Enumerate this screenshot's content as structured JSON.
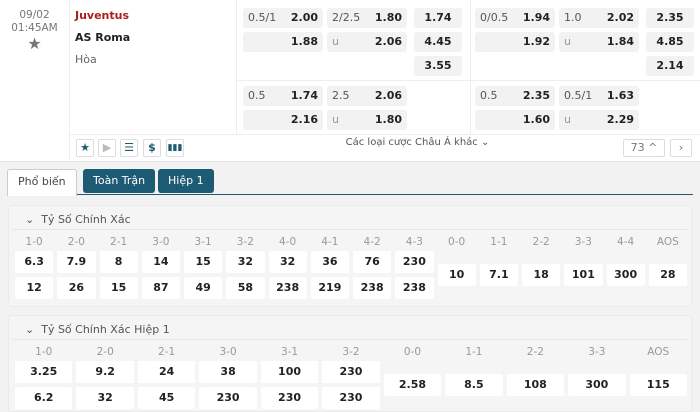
{
  "match": {
    "date": "09/02",
    "time": "01:45AM",
    "home": "Juventus",
    "away": "AS Roma",
    "draw": "Hòa"
  },
  "ft": {
    "hdp": {
      "line": "0.5/1",
      "home": "2.00",
      "away": "1.88"
    },
    "ou": {
      "line": "2/2.5",
      "over": "1.80",
      "u": "u",
      "under": "2.06"
    },
    "x12": [
      "1.74",
      "4.45",
      "3.55"
    ]
  },
  "ft2": {
    "hdp": {
      "line": "0.5",
      "home": "1.74",
      "away": "2.16"
    },
    "ou": {
      "line": "2.5",
      "over": "2.06",
      "u": "u",
      "under": "1.80"
    }
  },
  "h1": {
    "hdp": {
      "line": "0/0.5",
      "home": "1.94",
      "away": "1.92"
    },
    "ou": {
      "line": "1.0",
      "over": "2.02",
      "u": "u",
      "under": "1.84"
    },
    "x12": [
      "2.35",
      "4.85",
      "2.14"
    ]
  },
  "h12": {
    "hdp": {
      "line": "0.5",
      "home": "2.35",
      "away": "1.60"
    },
    "ou": {
      "line": "0.5/1",
      "over": "1.63",
      "u": "u",
      "under": "2.29"
    }
  },
  "footer": {
    "more_label": "Các loại cược Châu Á khác",
    "count": "73"
  },
  "tabs": [
    "Phổ biến",
    "Toàn Trận",
    "Hiệp 1"
  ],
  "accent": "#1d5a73",
  "cs": {
    "title": "Tỷ Số Chính Xác",
    "labels": [
      "1-0",
      "2-0",
      "2-1",
      "3-0",
      "3-1",
      "3-2",
      "4-0",
      "4-1",
      "4-2",
      "4-3",
      "0-0",
      "1-1",
      "2-2",
      "3-3",
      "4-4",
      "AOS"
    ],
    "home": [
      "6.3",
      "7.9",
      "8",
      "14",
      "15",
      "32",
      "32",
      "36",
      "76",
      "230"
    ],
    "away": [
      "12",
      "26",
      "15",
      "87",
      "49",
      "58",
      "238",
      "219",
      "238",
      "238"
    ],
    "draw": [
      "10",
      "7.1",
      "18",
      "101",
      "300",
      "28"
    ]
  },
  "cs1": {
    "title": "Tỷ Số Chính Xác Hiệp 1",
    "labels": [
      "1-0",
      "2-0",
      "2-1",
      "3-0",
      "3-1",
      "3-2",
      "0-0",
      "1-1",
      "2-2",
      "3-3",
      "AOS"
    ],
    "home": [
      "3.25",
      "9.2",
      "24",
      "38",
      "100",
      "230"
    ],
    "away": [
      "6.2",
      "32",
      "45",
      "230",
      "230",
      "230"
    ],
    "draw": [
      "2.58",
      "8.5",
      "108",
      "300",
      "115"
    ]
  }
}
